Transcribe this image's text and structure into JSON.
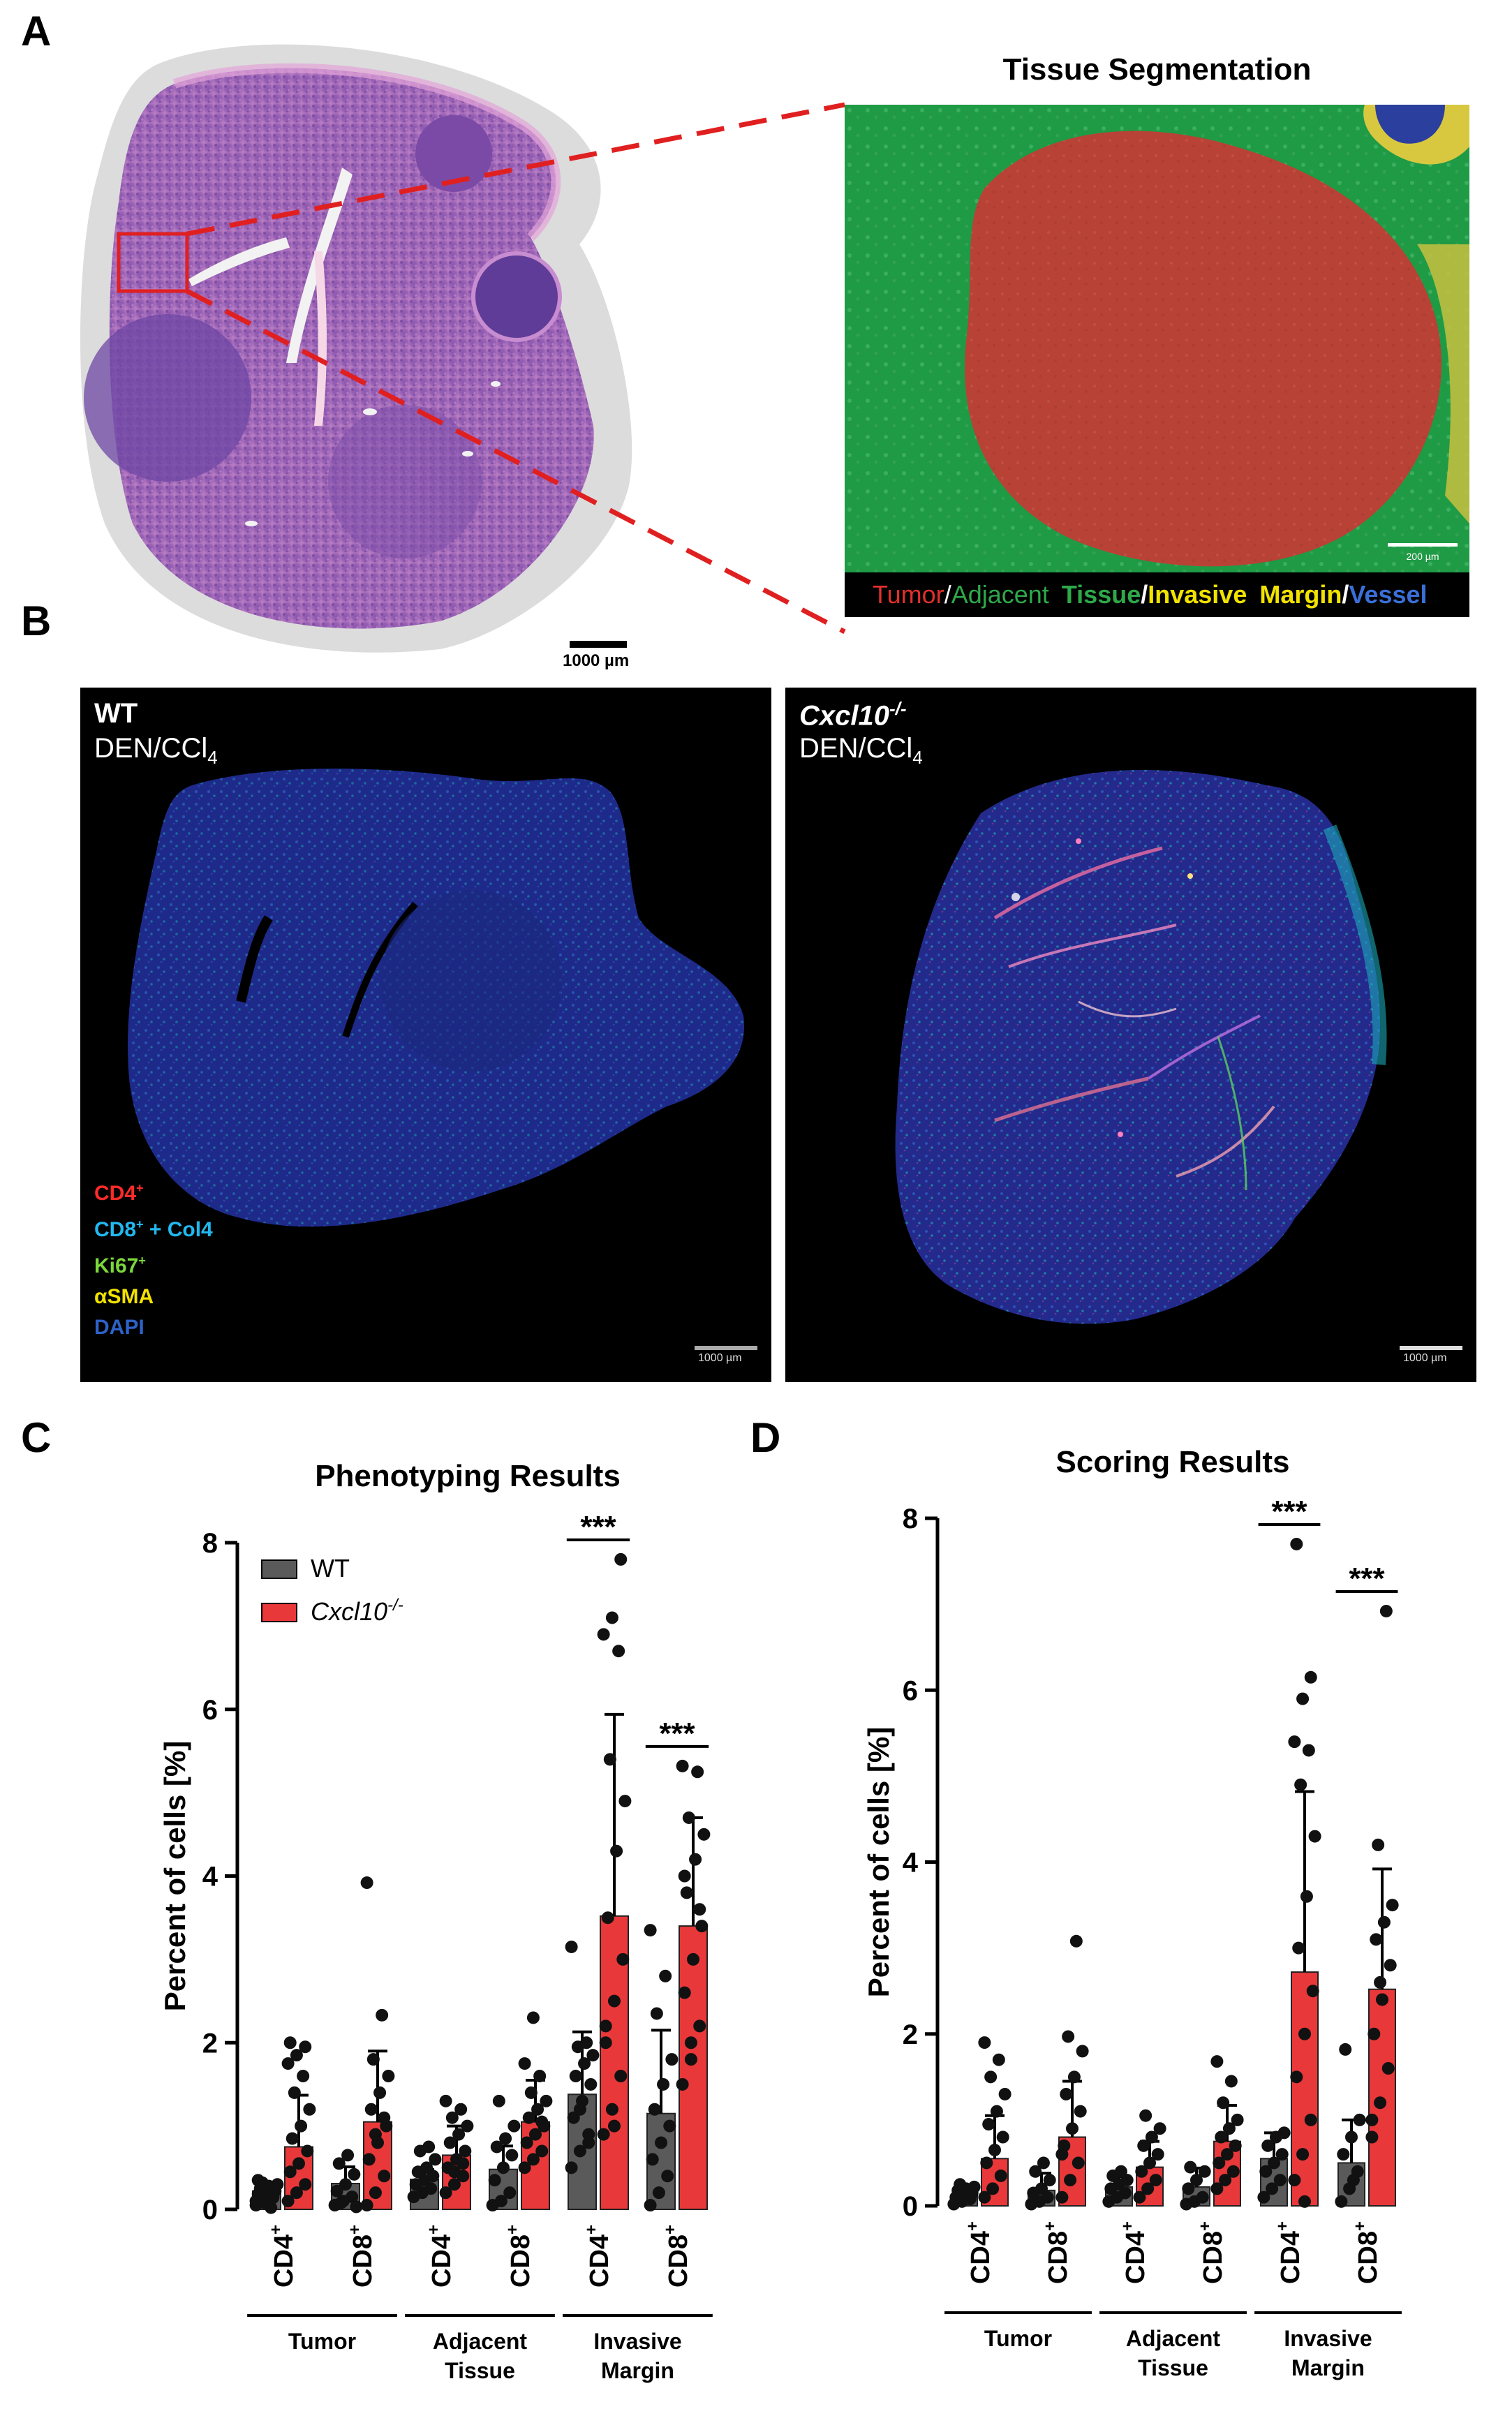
{
  "panels": {
    "a": "A",
    "b": "B",
    "c": "C",
    "d": "D"
  },
  "panel_a": {
    "scale_bar": "1000 µm",
    "segmentation_title": "Tissue Segmentation",
    "segmentation_scale": "200 µm",
    "legend": {
      "tumor": "Tumor",
      "slash1": "/",
      "adjacent": "Adjacent",
      "tissue": "Tissue",
      "slash2": "/",
      "invasive": "Invasive",
      "margin": "Margin",
      "slash3": "/",
      "vessel": "Vessel"
    },
    "colors": {
      "tumor": "#e0302a",
      "adjacent": "#2ea84a",
      "tissue": "#2ea84a",
      "invasive": "#f2e200",
      "vessel": "#3a6fd8",
      "slash": "#ffffff"
    }
  },
  "panel_b": {
    "left": {
      "line1": "WT",
      "line2_prefix": "DEN/CCl",
      "line2_sub": "4",
      "scale": "1000 µm"
    },
    "right": {
      "line1_prefix": "Cxcl10",
      "line1_sup": "-/-",
      "line2_prefix": "DEN/CCl",
      "line2_sub": "4",
      "scale": "1000 µm"
    },
    "channels": [
      {
        "base": "CD4",
        "sup": "+",
        "rest": "",
        "color": "#ff2a2a"
      },
      {
        "base": "CD8",
        "sup": "+",
        "rest": " + Col4",
        "color": "#22b8f0"
      },
      {
        "base": "Ki67",
        "sup": "+",
        "rest": "",
        "color": "#7ad83a"
      },
      {
        "base": "αSMA",
        "sup": "",
        "rest": "",
        "color": "#f2e200"
      },
      {
        "base": "DAPI",
        "sup": "",
        "rest": "",
        "color": "#2d62c8"
      }
    ]
  },
  "chart_data": [
    {
      "type": "bar",
      "title": "Phenotyping Results",
      "ylabel": "Percent of cells [%]",
      "ylim": [
        0,
        8
      ],
      "yticks": [
        "0",
        "2",
        "4",
        "6",
        "8"
      ],
      "categories": [
        "CD4",
        "CD8",
        "CD4",
        "CD8",
        "CD4",
        "CD8"
      ],
      "category_sup": "+",
      "groups": [
        {
          "label": [
            "Tumor"
          ]
        },
        {
          "label": [
            "Adjacent",
            "Tissue"
          ]
        },
        {
          "label": [
            "Invasive",
            "Margin"
          ]
        }
      ],
      "legend": {
        "wt": "WT",
        "ko_prefix": "Cxcl10",
        "ko_sup": "-/-"
      },
      "colors": {
        "wt": "#5a5a5a",
        "ko": "#e8383a"
      },
      "series": [
        {
          "key": "wt",
          "values": [
            0.22,
            0.31,
            0.36,
            0.48,
            1.38,
            1.15
          ],
          "error": [
            0.1,
            0.2,
            0.12,
            0.28,
            0.75,
            1.0
          ]
        },
        {
          "key": "ko",
          "values": [
            0.75,
            1.05,
            0.65,
            1.05,
            3.52,
            3.4
          ],
          "error": [
            0.62,
            0.85,
            0.35,
            0.5,
            2.42,
            1.3
          ]
        }
      ],
      "points": [
        {
          "wt": [
            0.1,
            0.12,
            0.15,
            0.18,
            0.2,
            0.22,
            0.25,
            0.28,
            0.3,
            0.32,
            0.02,
            0.05,
            0.08,
            0.14,
            0.35
          ],
          "ko": [
            0.1,
            0.2,
            0.3,
            0.45,
            0.55,
            0.7,
            0.85,
            1.0,
            1.2,
            1.4,
            1.6,
            1.75,
            1.85,
            1.95,
            2.0
          ]
        },
        {
          "wt": [
            0.05,
            0.1,
            0.15,
            0.22,
            0.3,
            0.42,
            0.55,
            0.65,
            0.03,
            0.08
          ],
          "ko": [
            0.05,
            0.2,
            0.4,
            0.6,
            0.8,
            1.0,
            1.2,
            1.4,
            1.6,
            1.8,
            2.33,
            3.92,
            0.9,
            1.1
          ]
        },
        {
          "wt": [
            0.15,
            0.2,
            0.25,
            0.3,
            0.35,
            0.4,
            0.45,
            0.5,
            0.6,
            0.7,
            0.75
          ],
          "ko": [
            0.2,
            0.3,
            0.4,
            0.5,
            0.6,
            0.7,
            0.8,
            0.9,
            1.0,
            1.1,
            1.2,
            1.3,
            0.45,
            0.55
          ]
        },
        {
          "wt": [
            0.05,
            0.1,
            0.2,
            0.35,
            0.5,
            0.65,
            0.75,
            0.85,
            1.0,
            1.3
          ],
          "ko": [
            0.5,
            0.6,
            0.7,
            0.8,
            0.9,
            1.0,
            1.1,
            1.2,
            1.3,
            1.4,
            1.6,
            1.75,
            2.3,
            1.05
          ]
        },
        {
          "wt": [
            0.5,
            0.7,
            0.9,
            1.1,
            1.3,
            1.5,
            1.6,
            1.75,
            1.85,
            1.95,
            2.0,
            3.15,
            1.2,
            0.8
          ],
          "ko": [
            0.9,
            1.2,
            1.6,
            2.0,
            2.5,
            3.0,
            3.5,
            4.3,
            4.9,
            5.4,
            6.7,
            6.9,
            7.1,
            7.8,
            2.2,
            1.0
          ]
        },
        {
          "wt": [
            0.05,
            0.2,
            0.4,
            0.6,
            0.8,
            1.0,
            1.2,
            1.5,
            1.8,
            2.35,
            2.8,
            3.35
          ],
          "ko": [
            1.5,
            1.8,
            2.2,
            2.6,
            3.0,
            3.4,
            3.8,
            4.2,
            4.5,
            4.7,
            5.25,
            5.32,
            2.0,
            3.6,
            4.0
          ]
        }
      ],
      "significance": [
        {
          "category": 4,
          "label": "***"
        },
        {
          "category": 5,
          "label": "***"
        }
      ]
    },
    {
      "type": "bar",
      "title": "Scoring Results",
      "ylabel": "Percent of cells [%]",
      "ylim": [
        0,
        8
      ],
      "yticks": [
        "0",
        "2",
        "4",
        "6",
        "8"
      ],
      "categories": [
        "CD4",
        "CD8",
        "CD4",
        "CD8",
        "CD4",
        "CD8"
      ],
      "category_sup": "+",
      "groups": [
        {
          "label": [
            "Tumor"
          ]
        },
        {
          "label": [
            "Adjacent",
            "Tissue"
          ]
        },
        {
          "label": [
            "Invasive",
            "Margin"
          ]
        }
      ],
      "colors": {
        "wt": "#5a5a5a",
        "ko": "#e8383a"
      },
      "series": [
        {
          "key": "wt",
          "values": [
            0.12,
            0.18,
            0.22,
            0.22,
            0.55,
            0.5
          ],
          "error": [
            0.06,
            0.2,
            0.12,
            0.22,
            0.3,
            0.5
          ]
        },
        {
          "key": "ko",
          "values": [
            0.55,
            0.8,
            0.45,
            0.75,
            2.72,
            2.52
          ],
          "error": [
            0.5,
            0.65,
            0.3,
            0.42,
            2.1,
            1.4
          ]
        }
      ],
      "points": [
        {
          "wt": [
            0.02,
            0.05,
            0.08,
            0.1,
            0.12,
            0.15,
            0.18,
            0.2,
            0.22,
            0.25
          ],
          "ko": [
            0.1,
            0.2,
            0.35,
            0.5,
            0.65,
            0.8,
            0.95,
            1.1,
            1.3,
            1.5,
            1.7,
            1.9
          ]
        },
        {
          "wt": [
            0.02,
            0.05,
            0.1,
            0.15,
            0.2,
            0.3,
            0.4,
            0.5
          ],
          "ko": [
            0.1,
            0.3,
            0.5,
            0.7,
            0.9,
            1.1,
            1.3,
            1.5,
            1.8,
            1.97,
            3.08,
            0.6
          ]
        },
        {
          "wt": [
            0.05,
            0.1,
            0.15,
            0.2,
            0.25,
            0.3,
            0.35,
            0.4
          ],
          "ko": [
            0.1,
            0.2,
            0.3,
            0.4,
            0.5,
            0.6,
            0.7,
            0.8,
            0.9,
            1.05
          ]
        },
        {
          "wt": [
            0.02,
            0.05,
            0.1,
            0.2,
            0.3,
            0.4,
            0.45
          ],
          "ko": [
            0.2,
            0.3,
            0.4,
            0.5,
            0.6,
            0.7,
            0.8,
            0.9,
            1.0,
            1.2,
            1.45,
            1.68
          ]
        },
        {
          "wt": [
            0.1,
            0.2,
            0.3,
            0.4,
            0.5,
            0.6,
            0.7,
            0.8,
            0.85
          ],
          "ko": [
            0.3,
            0.6,
            1.0,
            1.5,
            2.0,
            2.5,
            3.0,
            3.6,
            4.3,
            4.9,
            5.3,
            5.4,
            5.9,
            6.15,
            7.7,
            0.05
          ]
        },
        {
          "wt": [
            0.05,
            0.2,
            0.4,
            0.6,
            0.8,
            1.0,
            1.82,
            0.3
          ],
          "ko": [
            0.8,
            1.2,
            1.6,
            2.0,
            2.4,
            2.8,
            3.1,
            3.3,
            3.5,
            4.2,
            6.92,
            1.0,
            2.6
          ]
        }
      ],
      "significance": [
        {
          "category": 4,
          "label": "***"
        },
        {
          "category": 5,
          "label": "***"
        }
      ]
    }
  ]
}
